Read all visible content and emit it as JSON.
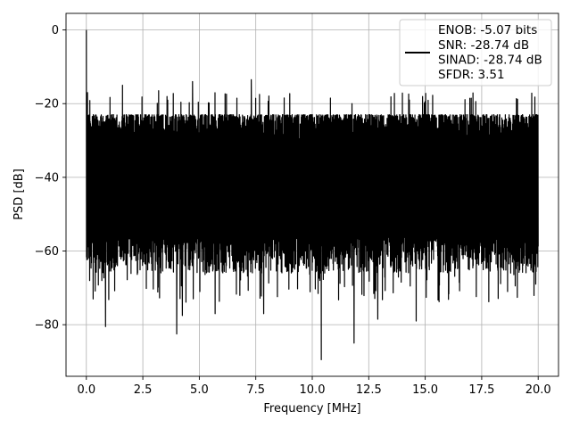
{
  "chart_data": {
    "type": "line",
    "title": "",
    "xlabel": "Frequency [MHz]",
    "ylabel": "PSD [dB]",
    "xlim": [
      -0.9,
      20.9
    ],
    "ylim": [
      -94,
      4.5
    ],
    "grid": true,
    "line_color": "#000000",
    "x_ticks": [
      0.0,
      2.5,
      5.0,
      7.5,
      10.0,
      12.5,
      15.0,
      17.5,
      20.0
    ],
    "x_tick_labels": [
      "0.0",
      "2.5",
      "5.0",
      "7.5",
      "10.0",
      "12.5",
      "15.0",
      "17.5",
      "20.0"
    ],
    "y_ticks": [
      0,
      -20,
      -40,
      -60,
      -80
    ],
    "y_tick_labels": [
      "0",
      "−20",
      "−40",
      "−60",
      "−80"
    ],
    "legend": {
      "position": "upper-right",
      "entries": [
        "ENOB: -5.07 bits",
        "SNR: -28.74 dB",
        "SINAD: -28.74 dB",
        "SFDR: 3.51"
      ]
    },
    "series": [
      {
        "x_range": [
          0,
          20
        ],
        "noise_upper_envelope_db": -22,
        "noise_lower_envelope_db": -62,
        "notable_points": [
          {
            "x": 0.0,
            "y": 0
          },
          {
            "x": 0.05,
            "y": -17
          },
          {
            "x": 0.3,
            "y": -73
          },
          {
            "x": 0.85,
            "y": -80.5
          },
          {
            "x": 1.6,
            "y": -15
          },
          {
            "x": 3.2,
            "y": -16.5
          },
          {
            "x": 4.0,
            "y": -82.5
          },
          {
            "x": 4.25,
            "y": -77.5
          },
          {
            "x": 4.7,
            "y": -14
          },
          {
            "x": 5.7,
            "y": -77
          },
          {
            "x": 7.3,
            "y": -13.5
          },
          {
            "x": 7.85,
            "y": -77
          },
          {
            "x": 10.4,
            "y": -89.5
          },
          {
            "x": 11.85,
            "y": -85
          },
          {
            "x": 12.9,
            "y": -78.5
          },
          {
            "x": 14.6,
            "y": -79
          }
        ]
      }
    ]
  }
}
